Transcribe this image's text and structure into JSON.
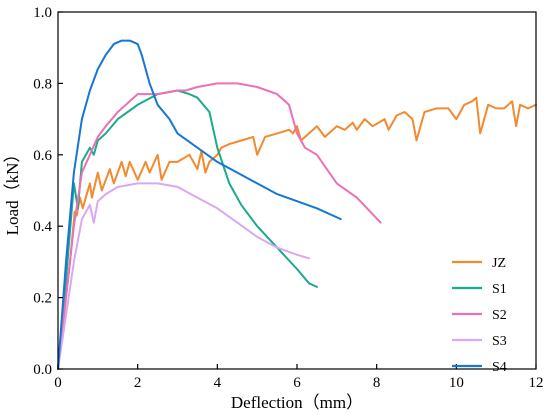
{
  "chart_data": {
    "type": "line",
    "title": "",
    "xlabel": "Deflection（mm）",
    "ylabel": "Load（kN）",
    "xlim": [
      0,
      12
    ],
    "ylim": [
      0.0,
      1.0
    ],
    "xticks": [
      "0",
      "2",
      "4",
      "6",
      "8",
      "10",
      "12"
    ],
    "yticks": [
      "0.0",
      "0.2",
      "0.4",
      "0.6",
      "0.8",
      "1.0"
    ],
    "grid": false,
    "legend_position": "bottom-right",
    "series": [
      {
        "name": "JZ",
        "color": "#f28a2e",
        "x": [
          0,
          0.3,
          0.42,
          0.47,
          0.55,
          0.62,
          0.8,
          0.85,
          1.0,
          1.1,
          1.3,
          1.4,
          1.6,
          1.7,
          1.8,
          2.0,
          2.2,
          2.3,
          2.5,
          2.6,
          2.8,
          3.0,
          3.3,
          3.5,
          3.6,
          3.7,
          3.8,
          4.0,
          4.1,
          4.3,
          4.6,
          4.9,
          5.0,
          5.2,
          5.5,
          5.8,
          5.9,
          6.0,
          6.1,
          6.3,
          6.5,
          6.7,
          7.0,
          7.2,
          7.4,
          7.5,
          7.7,
          7.9,
          8.2,
          8.3,
          8.5,
          8.7,
          8.9,
          9.0,
          9.2,
          9.5,
          9.8,
          10.0,
          10.2,
          10.4,
          10.5,
          10.6,
          10.8,
          11.0,
          11.2,
          11.4,
          11.5,
          11.6,
          11.8,
          12.0
        ],
        "y": [
          0.0,
          0.3,
          0.44,
          0.43,
          0.48,
          0.45,
          0.52,
          0.48,
          0.55,
          0.5,
          0.56,
          0.52,
          0.58,
          0.54,
          0.58,
          0.53,
          0.58,
          0.55,
          0.6,
          0.53,
          0.58,
          0.58,
          0.6,
          0.56,
          0.61,
          0.55,
          0.58,
          0.6,
          0.62,
          0.63,
          0.64,
          0.65,
          0.6,
          0.65,
          0.66,
          0.67,
          0.66,
          0.68,
          0.64,
          0.66,
          0.68,
          0.65,
          0.68,
          0.67,
          0.69,
          0.67,
          0.7,
          0.68,
          0.7,
          0.67,
          0.71,
          0.72,
          0.7,
          0.64,
          0.72,
          0.73,
          0.73,
          0.7,
          0.74,
          0.75,
          0.76,
          0.66,
          0.74,
          0.73,
          0.73,
          0.75,
          0.68,
          0.74,
          0.73,
          0.74
        ]
      },
      {
        "name": "S1",
        "color": "#1aaa8c",
        "x": [
          0,
          0.2,
          0.4,
          0.5,
          0.6,
          0.8,
          0.9,
          1.0,
          1.2,
          1.5,
          2.0,
          2.5,
          3.0,
          3.3,
          3.5,
          3.8,
          4.0,
          4.3,
          4.6,
          5.0,
          5.5,
          6.0,
          6.3,
          6.5
        ],
        "y": [
          0.0,
          0.25,
          0.52,
          0.45,
          0.58,
          0.62,
          0.6,
          0.64,
          0.66,
          0.7,
          0.74,
          0.77,
          0.78,
          0.77,
          0.76,
          0.72,
          0.62,
          0.52,
          0.46,
          0.4,
          0.34,
          0.28,
          0.24,
          0.23
        ]
      },
      {
        "name": "S2",
        "color": "#ee6fb3",
        "x": [
          0,
          0.2,
          0.4,
          0.6,
          0.8,
          1.0,
          1.2,
          1.5,
          1.8,
          2.0,
          2.5,
          3.0,
          3.2,
          3.5,
          4.0,
          4.5,
          5.0,
          5.5,
          5.8,
          6.0,
          6.2,
          6.5,
          7.0,
          7.5,
          8.1
        ],
        "y": [
          0.0,
          0.2,
          0.4,
          0.55,
          0.6,
          0.65,
          0.68,
          0.72,
          0.75,
          0.77,
          0.77,
          0.78,
          0.78,
          0.79,
          0.8,
          0.8,
          0.79,
          0.77,
          0.74,
          0.66,
          0.62,
          0.6,
          0.52,
          0.48,
          0.41
        ]
      },
      {
        "name": "S3",
        "color": "#d9a8f0",
        "x": [
          0,
          0.2,
          0.4,
          0.6,
          0.8,
          0.9,
          1.0,
          1.2,
          1.5,
          2.0,
          2.5,
          3.0,
          3.5,
          4.0,
          4.5,
          5.0,
          5.5,
          6.0,
          6.3
        ],
        "y": [
          0.0,
          0.15,
          0.3,
          0.42,
          0.46,
          0.41,
          0.47,
          0.49,
          0.51,
          0.52,
          0.52,
          0.51,
          0.48,
          0.45,
          0.41,
          0.37,
          0.34,
          0.32,
          0.31
        ]
      },
      {
        "name": "S4",
        "color": "#1677d2",
        "x": [
          0,
          0.2,
          0.4,
          0.6,
          0.8,
          1.0,
          1.2,
          1.4,
          1.6,
          1.8,
          2.0,
          2.1,
          2.3,
          2.5,
          2.8,
          3.0,
          3.5,
          4.0,
          4.5,
          5.0,
          5.5,
          6.0,
          6.5,
          7.1
        ],
        "y": [
          0.0,
          0.3,
          0.55,
          0.7,
          0.78,
          0.84,
          0.88,
          0.91,
          0.92,
          0.92,
          0.91,
          0.88,
          0.8,
          0.74,
          0.7,
          0.66,
          0.62,
          0.58,
          0.55,
          0.52,
          0.49,
          0.47,
          0.45,
          0.42
        ]
      }
    ]
  }
}
